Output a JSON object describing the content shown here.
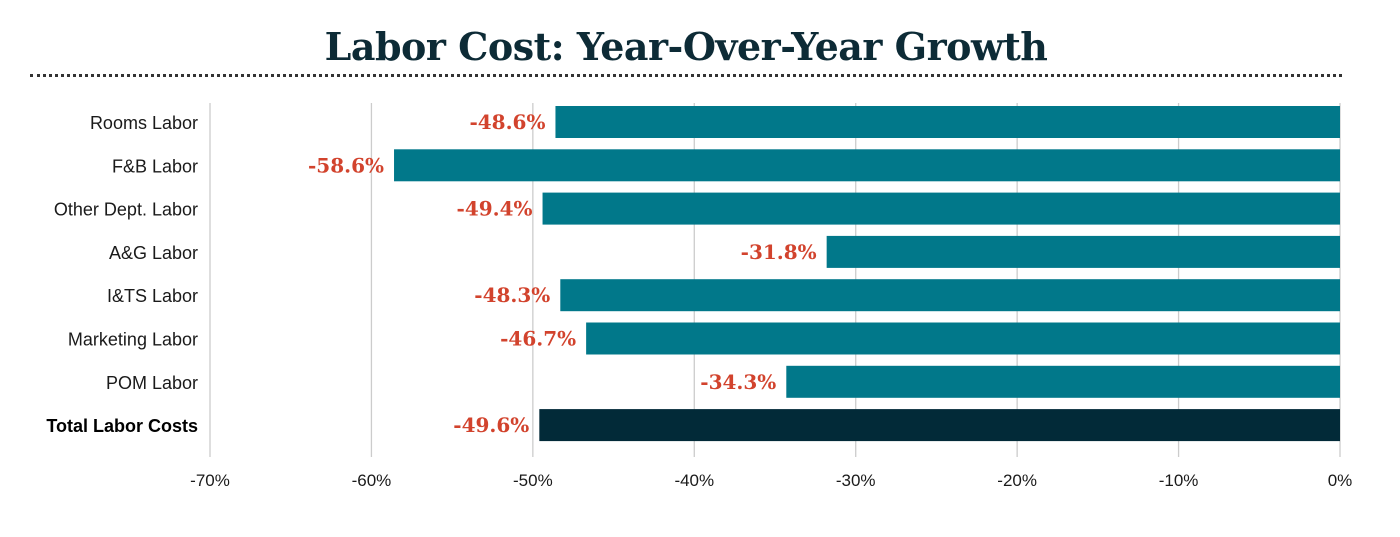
{
  "chart_data": {
    "type": "bar",
    "orientation": "horizontal",
    "title": "Labor Cost: Year-Over-Year Growth",
    "categories": [
      "Rooms Labor",
      "F&B Labor",
      "Other Dept. Labor",
      "A&G Labor",
      "I&TS Labor",
      "Marketing Labor",
      "POM Labor",
      "Total Labor Costs"
    ],
    "values": [
      -48.6,
      -58.6,
      -49.4,
      -31.8,
      -48.3,
      -46.7,
      -34.3,
      -49.6
    ],
    "data_labels": [
      "-48.6%",
      "-58.6%",
      "-49.4%",
      "-31.8%",
      "-48.3%",
      "-46.7%",
      "-34.3%",
      "-49.6%"
    ],
    "highlight_category": "Total Labor Costs",
    "xlim": [
      -70,
      0
    ],
    "xticks": [
      -70,
      -60,
      -50,
      -40,
      -30,
      -20,
      -10,
      0
    ],
    "xtick_labels": [
      "-70%",
      "-60%",
      "-50%",
      "-40%",
      "-30%",
      "-20%",
      "-10%",
      "0%"
    ],
    "grid": true,
    "legend": "none",
    "colors": {
      "bar": "#01788a",
      "highlight_bar": "#022a38",
      "data_label": "#d2432d",
      "grid": "#cccccc",
      "title": "#0d2b36"
    }
  }
}
